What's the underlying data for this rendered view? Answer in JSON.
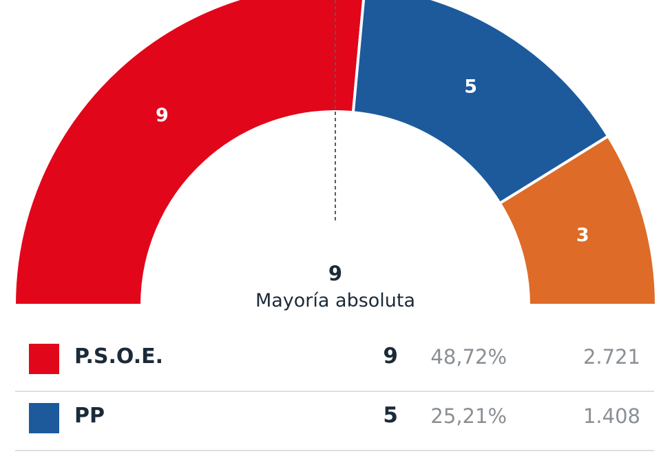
{
  "chart_data": {
    "type": "pie",
    "subtype": "parliament-semicircle",
    "total_seats": 17,
    "majority": {
      "value": "9",
      "label": "Mayoría absoluta"
    },
    "series": [
      {
        "name": "P.S.O.E.",
        "seats": 9,
        "percent": "48,72%",
        "votes": "2.721",
        "color": "#e2061a"
      },
      {
        "name": "PP",
        "seats": 5,
        "percent": "25,21%",
        "votes": "1.408",
        "color": "#1c5a9c"
      },
      {
        "seats": 3,
        "color": "#de6b27"
      }
    ]
  },
  "results_table": {
    "rows": [
      {
        "party": "P.S.O.E.",
        "seats": "9",
        "percent": "48,72%",
        "votes": "2.721",
        "color": "#e2061a"
      },
      {
        "party": "PP",
        "seats": "5",
        "percent": "25,21%",
        "votes": "1.408",
        "color": "#1c5a9c"
      }
    ]
  }
}
